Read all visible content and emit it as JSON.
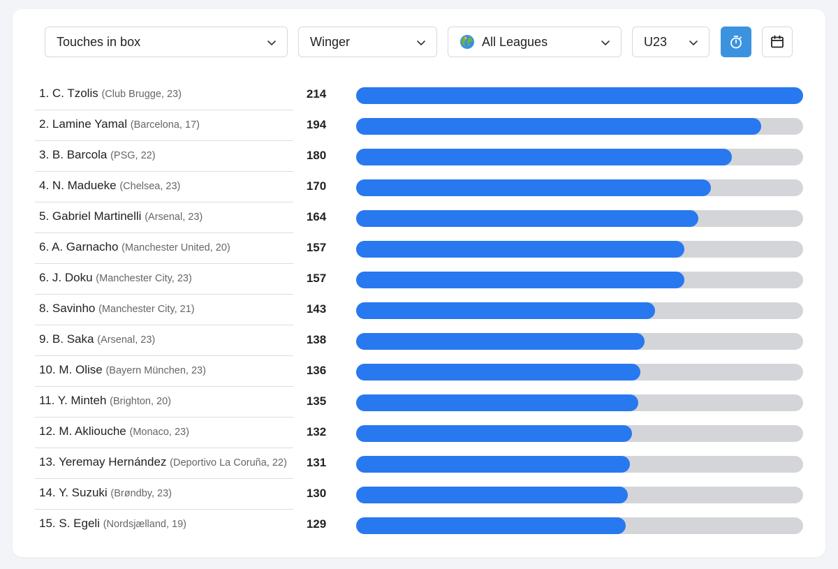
{
  "filters": {
    "metric": "Touches in box",
    "position": "Winger",
    "league": "All Leagues",
    "age": "U23"
  },
  "colors": {
    "bar_fill": "#2878f0",
    "bar_track": "#d4d5d8",
    "timer_button": "#3b93e0"
  },
  "icons": {
    "league": "globe-icon",
    "timer": "stopwatch-icon",
    "calendar": "calendar-icon",
    "dropdown": "chevron-down-icon"
  },
  "chart_data": {
    "type": "bar",
    "orientation": "horizontal",
    "xlim": [
      0,
      214
    ],
    "rows": [
      {
        "rank": "1.",
        "name": "C. Tzolis",
        "meta": "(Club Brugge, 23)",
        "value": 214
      },
      {
        "rank": "2.",
        "name": "Lamine Yamal",
        "meta": "(Barcelona, 17)",
        "value": 194
      },
      {
        "rank": "3.",
        "name": "B. Barcola",
        "meta": "(PSG, 22)",
        "value": 180
      },
      {
        "rank": "4.",
        "name": "N. Madueke",
        "meta": "(Chelsea, 23)",
        "value": 170
      },
      {
        "rank": "5.",
        "name": "Gabriel Martinelli",
        "meta": "(Arsenal, 23)",
        "value": 164
      },
      {
        "rank": "6.",
        "name": "A. Garnacho",
        "meta": "(Manchester United, 20)",
        "value": 157
      },
      {
        "rank": "6.",
        "name": "J. Doku",
        "meta": "(Manchester City, 23)",
        "value": 157
      },
      {
        "rank": "8.",
        "name": "Savinho",
        "meta": "(Manchester City, 21)",
        "value": 143
      },
      {
        "rank": "9.",
        "name": "B. Saka",
        "meta": "(Arsenal, 23)",
        "value": 138
      },
      {
        "rank": "10.",
        "name": "M. Olise",
        "meta": "(Bayern München, 23)",
        "value": 136
      },
      {
        "rank": "11.",
        "name": "Y. Minteh",
        "meta": "(Brighton, 20)",
        "value": 135
      },
      {
        "rank": "12.",
        "name": "M. Akliouche",
        "meta": "(Monaco, 23)",
        "value": 132
      },
      {
        "rank": "13.",
        "name": "Yeremay Hernández",
        "meta": "(Deportivo La Coruña, 22)",
        "value": 131
      },
      {
        "rank": "14.",
        "name": "Y. Suzuki",
        "meta": "(Brøndby, 23)",
        "value": 130
      },
      {
        "rank": "15.",
        "name": "S. Egeli",
        "meta": "(Nordsjælland, 19)",
        "value": 129
      }
    ]
  }
}
